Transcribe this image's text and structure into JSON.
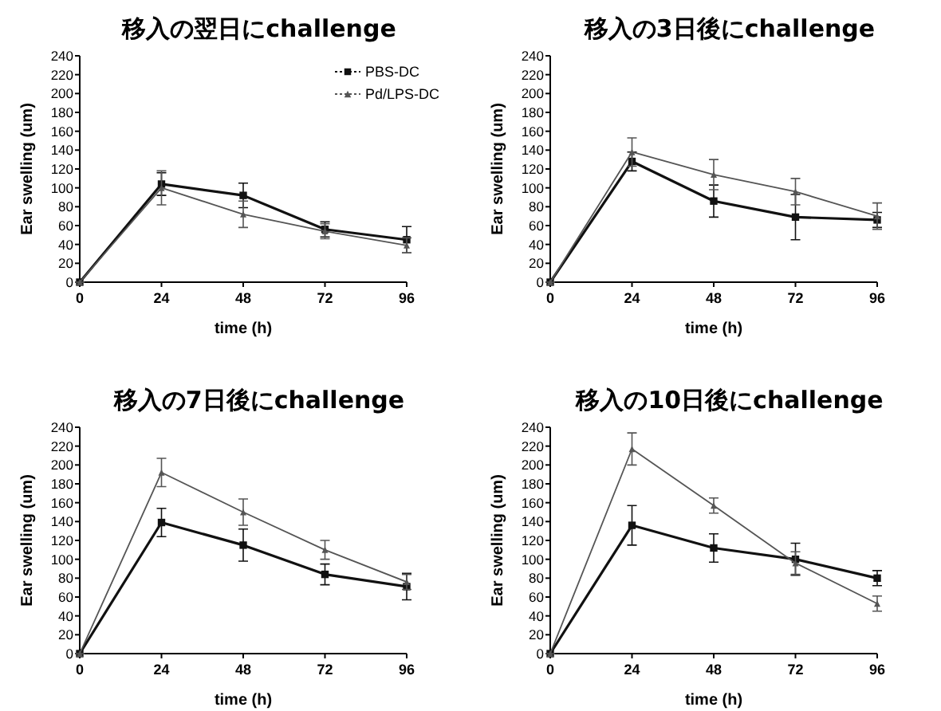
{
  "chart_data": [
    {
      "type": "line",
      "title": "移入の翌日にchallenge",
      "xlabel": "time (h)",
      "ylabel": "Ear swelling (um)",
      "x": [
        0,
        24,
        48,
        72,
        96
      ],
      "xlim": [
        0,
        96
      ],
      "xticks": [
        0,
        24,
        48,
        72,
        96
      ],
      "ylim": [
        0,
        240
      ],
      "yticks": [
        0,
        20,
        40,
        60,
        80,
        100,
        120,
        140,
        160,
        180,
        200,
        220,
        240
      ],
      "legend": "top right",
      "series": [
        {
          "name": "PBS-DC",
          "color": "#111111",
          "marker": "square",
          "values": [
            0,
            104,
            92,
            56,
            45
          ],
          "errors": [
            0,
            12,
            13,
            8,
            14
          ]
        },
        {
          "name": "Pd/LPS-DC",
          "color": "#555555",
          "marker": "triangle",
          "values": [
            0,
            100,
            72,
            54,
            39
          ],
          "errors": [
            0,
            18,
            14,
            8,
            8
          ]
        }
      ]
    },
    {
      "type": "line",
      "title": "移入の3日後にchallenge",
      "xlabel": "time (h)",
      "ylabel": "Ear swelling (um)",
      "x": [
        0,
        24,
        48,
        72,
        96
      ],
      "xlim": [
        0,
        96
      ],
      "xticks": [
        0,
        24,
        48,
        72,
        96
      ],
      "ylim": [
        0,
        240
      ],
      "yticks": [
        0,
        20,
        40,
        60,
        80,
        100,
        120,
        140,
        160,
        180,
        200,
        220,
        240
      ],
      "series": [
        {
          "color": "#111111",
          "marker": "square",
          "values": [
            0,
            128,
            86,
            69,
            66
          ],
          "errors": [
            0,
            10,
            17,
            24,
            8
          ]
        },
        {
          "color": "#555555",
          "marker": "triangle",
          "values": [
            0,
            138,
            114,
            96,
            70
          ],
          "errors": [
            0,
            15,
            16,
            14,
            14
          ]
        }
      ]
    },
    {
      "type": "line",
      "title": "移入の7日後にchallenge",
      "xlabel": "time (h)",
      "ylabel": "Ear swelling (um)",
      "x": [
        0,
        24,
        48,
        72,
        96
      ],
      "xlim": [
        0,
        96
      ],
      "xticks": [
        0,
        24,
        48,
        72,
        96
      ],
      "ylim": [
        0,
        240
      ],
      "yticks": [
        0,
        20,
        40,
        60,
        80,
        100,
        120,
        140,
        160,
        180,
        200,
        220,
        240
      ],
      "series": [
        {
          "color": "#111111",
          "marker": "square",
          "values": [
            0,
            139,
            115,
            84,
            71
          ],
          "errors": [
            0,
            15,
            17,
            11,
            14
          ]
        },
        {
          "color": "#555555",
          "marker": "triangle",
          "values": [
            0,
            192,
            150,
            110,
            76
          ],
          "errors": [
            0,
            15,
            14,
            10,
            8
          ]
        }
      ]
    },
    {
      "type": "line",
      "title": "移入の10日後にchallenge",
      "xlabel": "time (h)",
      "ylabel": "Ear swelling (um)",
      "x": [
        0,
        24,
        48,
        72,
        96
      ],
      "xlim": [
        0,
        96
      ],
      "xticks": [
        0,
        24,
        48,
        72,
        96
      ],
      "ylim": [
        0,
        240
      ],
      "yticks": [
        0,
        20,
        40,
        60,
        80,
        100,
        120,
        140,
        160,
        180,
        200,
        220,
        240
      ],
      "series": [
        {
          "color": "#111111",
          "marker": "square",
          "values": [
            0,
            136,
            112,
            100,
            80
          ],
          "errors": [
            0,
            21,
            15,
            17,
            8
          ]
        },
        {
          "color": "#555555",
          "marker": "triangle",
          "values": [
            0,
            217,
            157,
            96,
            53
          ],
          "errors": [
            0,
            17,
            8,
            12,
            8
          ]
        }
      ]
    }
  ]
}
